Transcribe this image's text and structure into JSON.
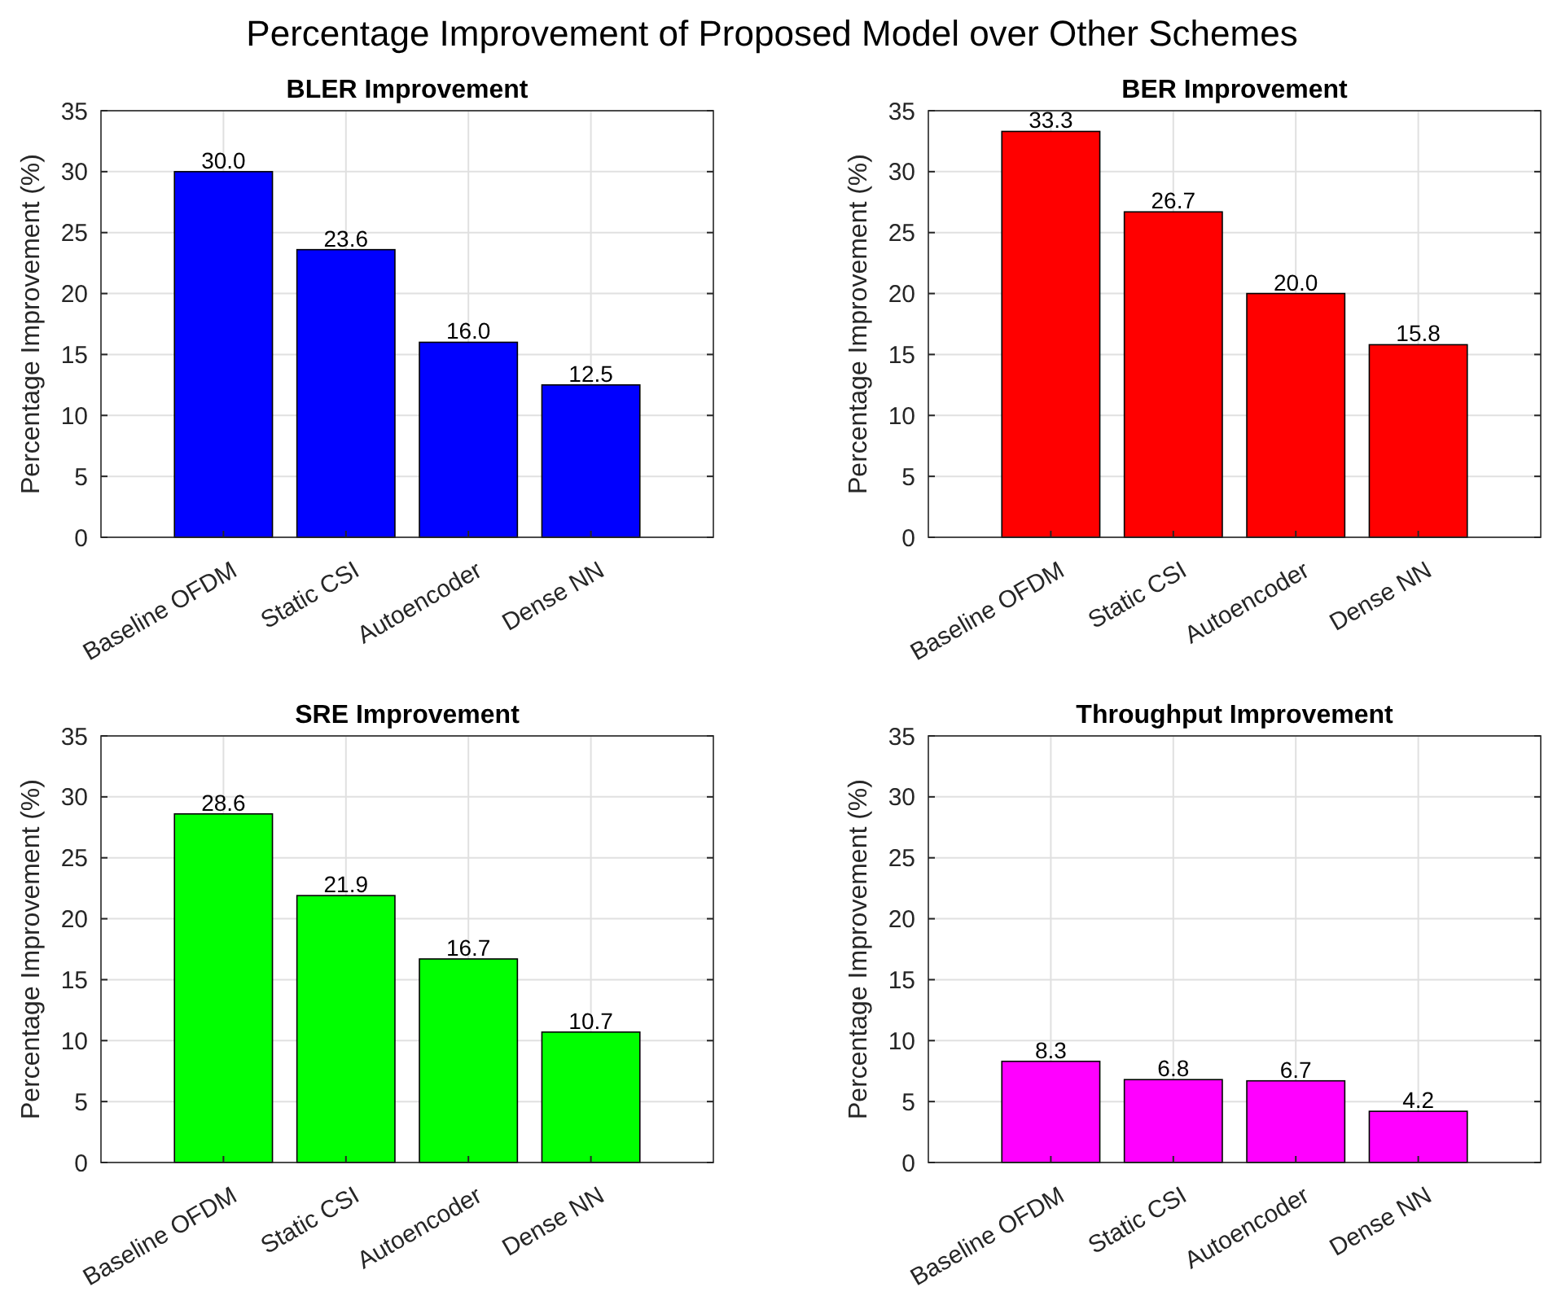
{
  "chart_data": [
    {
      "type": "bar",
      "title": "BLER Improvement",
      "ylabel": "Percentage Improvement (%)",
      "annotations": [
        "Percentage Improvement of Proposed Model over Other Schemes"
      ],
      "categories": [
        "Baseline OFDM",
        "Static CSI",
        "Autoencoder",
        "Dense NN"
      ],
      "values": [
        30.0,
        23.6,
        16.0,
        12.5
      ],
      "value_labels": [
        "30.0",
        "23.6",
        "16.0",
        "12.5"
      ],
      "color": "#0000ff",
      "ylim": [
        0,
        35
      ],
      "yticks": [
        0,
        5,
        10,
        15,
        20,
        25,
        30,
        35
      ],
      "grid": true
    },
    {
      "type": "bar",
      "title": "BER Improvement",
      "ylabel": "Percentage Improvement (%)",
      "categories": [
        "Baseline OFDM",
        "Static CSI",
        "Autoencoder",
        "Dense NN"
      ],
      "values": [
        33.3,
        26.7,
        20.0,
        15.8
      ],
      "value_labels": [
        "33.3",
        "26.7",
        "20.0",
        "15.8"
      ],
      "color": "#ff0000",
      "ylim": [
        0,
        35
      ],
      "yticks": [
        0,
        5,
        10,
        15,
        20,
        25,
        30,
        35
      ],
      "grid": true
    },
    {
      "type": "bar",
      "title": "SRE Improvement",
      "ylabel": "Percentage Improvement (%)",
      "categories": [
        "Baseline OFDM",
        "Static CSI",
        "Autoencoder",
        "Dense NN"
      ],
      "values": [
        28.6,
        21.9,
        16.7,
        10.7
      ],
      "value_labels": [
        "28.6",
        "21.9",
        "16.7",
        "10.7"
      ],
      "color": "#00ff00",
      "ylim": [
        0,
        35
      ],
      "yticks": [
        0,
        5,
        10,
        15,
        20,
        25,
        30,
        35
      ],
      "grid": true
    },
    {
      "type": "bar",
      "title": "Throughput Improvement",
      "ylabel": "Percentage Improvement (%)",
      "categories": [
        "Baseline OFDM",
        "Static CSI",
        "Autoencoder",
        "Dense NN"
      ],
      "values": [
        8.3,
        6.8,
        6.7,
        4.2
      ],
      "value_labels": [
        "8.3",
        "6.8",
        "6.7",
        "4.2"
      ],
      "color": "#ff00ff",
      "ylim": [
        0,
        35
      ],
      "yticks": [
        0,
        5,
        10,
        15,
        20,
        25,
        30,
        35
      ],
      "grid": true
    }
  ]
}
